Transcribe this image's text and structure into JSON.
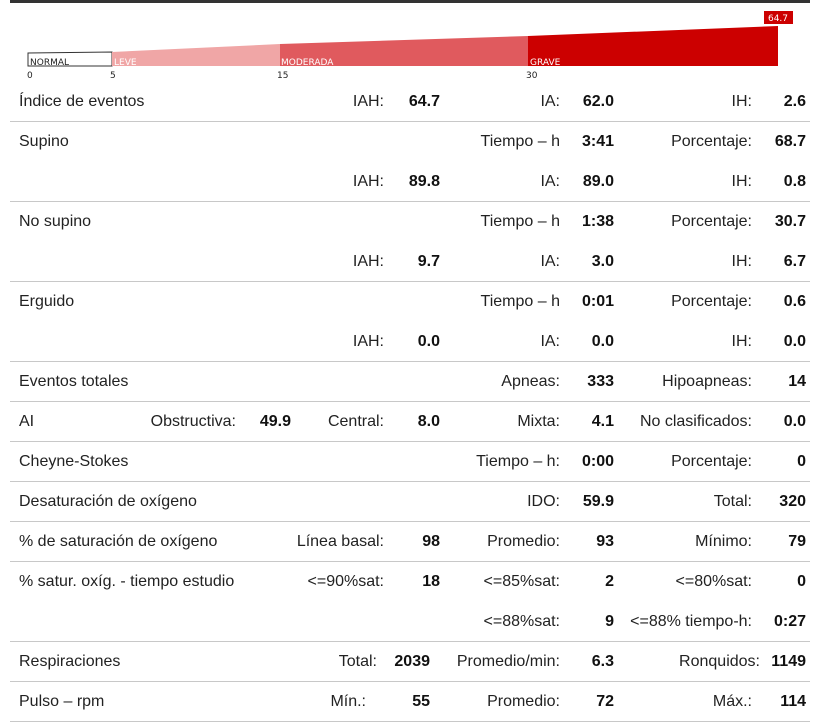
{
  "severity_scale": {
    "marker_value": "64.7",
    "segments": [
      {
        "name": "NORMAL",
        "tick": "0",
        "start": 0,
        "end": 5
      },
      {
        "name": "LEVE",
        "tick": "5",
        "start": 5,
        "end": 15
      },
      {
        "name": "MODERADA",
        "tick": "15",
        "start": 15,
        "end": 30
      },
      {
        "name": "GRAVE",
        "tick": "30",
        "start": 30,
        "end": 64.7
      }
    ],
    "colors": {
      "normal": "#ffffff",
      "leve": "#f0a6a6",
      "moderada": "#e05a5e",
      "grave": "#cc0000",
      "marker": "#cc0000"
    }
  },
  "rows": {
    "eventos": {
      "title": "Índice de eventos",
      "iah_label": "IAH:",
      "iah": "64.7",
      "ia_label": "IA:",
      "ia": "62.0",
      "ih_label": "IH:",
      "ih": "2.6"
    },
    "supino": {
      "title": "Supino",
      "tiempo_label": "Tiempo – h",
      "tiempo": "3:41",
      "pct_label": "Porcentaje:",
      "pct": "68.7",
      "iah_label": "IAH:",
      "iah": "89.8",
      "ia_label": "IA:",
      "ia": "89.0",
      "ih_label": "IH:",
      "ih": "0.8"
    },
    "no_supino": {
      "title": "No supino",
      "tiempo_label": "Tiempo – h",
      "tiempo": "1:38",
      "pct_label": "Porcentaje:",
      "pct": "30.7",
      "iah_label": "IAH:",
      "iah": "9.7",
      "ia_label": "IA:",
      "ia": "3.0",
      "ih_label": "IH:",
      "ih": "6.7"
    },
    "erguido": {
      "title": "Erguido",
      "tiempo_label": "Tiempo – h",
      "tiempo": "0:01",
      "pct_label": "Porcentaje:",
      "pct": "0.6",
      "iah_label": "IAH:",
      "iah": "0.0",
      "ia_label": "IA:",
      "ia": "0.0",
      "ih_label": "IH:",
      "ih": "0.0"
    },
    "totales": {
      "title": "Eventos totales",
      "apneas_label": "Apneas:",
      "apneas": "333",
      "hipo_label": "Hipoapneas:",
      "hipo": "14"
    },
    "ai": {
      "title": "AI",
      "obs_label": "Obstructiva:",
      "obs": "49.9",
      "cen_label": "Central:",
      "cen": "8.0",
      "mix_label": "Mixta:",
      "mix": "4.1",
      "nc_label": "No clasificados:",
      "nc": "0.0"
    },
    "cheyne": {
      "title": "Cheyne-Stokes",
      "tiempo_label": "Tiempo – h:",
      "tiempo": "0:00",
      "pct_label": "Porcentaje:",
      "pct": "0"
    },
    "desat": {
      "title": "Desaturación de oxígeno",
      "ido_label": "IDO:",
      "ido": "59.9",
      "total_label": "Total:",
      "total": "320"
    },
    "sat": {
      "title": "% de saturación de oxígeno",
      "basal_label": "Línea basal:",
      "basal": "98",
      "prom_label": "Promedio:",
      "prom": "93",
      "min_label": "Mínimo:",
      "min": "79"
    },
    "satur_tiempo": {
      "title": "% satur. oxíg. - tiempo estudio",
      "s90_label": "<=90%sat:",
      "s90": "18",
      "s85_label": "<=85%sat:",
      "s85": "2",
      "s80_label": "<=80%sat:",
      "s80": "0",
      "s88_label": "<=88%sat:",
      "s88": "9",
      "t88_label": "<=88% tiempo-h:",
      "t88": "0:27"
    },
    "resp": {
      "title": "Respiraciones",
      "total_label": "Total:",
      "total": "2039",
      "prom_label": "Promedio/min:",
      "prom": "6.3",
      "ronq_label": "Ronquidos:",
      "ronq": "1149"
    },
    "pulso": {
      "title": "Pulso – rpm",
      "min_label": "Mín.:",
      "min": "55",
      "prom_label": "Promedio:",
      "prom": "72",
      "max_label": "Máx.:",
      "max": "114"
    }
  }
}
